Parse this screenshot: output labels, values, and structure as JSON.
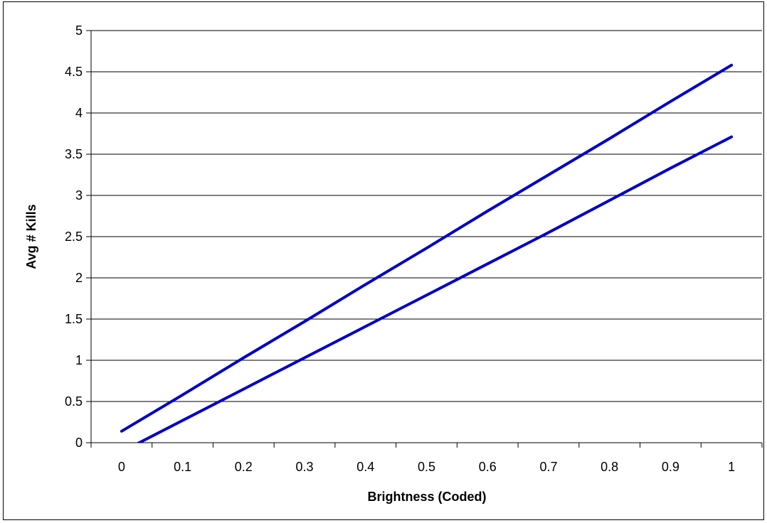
{
  "chart_data": {
    "type": "line",
    "title": "",
    "xlabel": "Brightness (Coded)",
    "ylabel": "Avg # Kills",
    "x": [
      0,
      0.1,
      0.2,
      0.3,
      0.4,
      0.5,
      0.6,
      0.7,
      0.8,
      0.9,
      1
    ],
    "x_tick_labels": [
      "0",
      "0.1",
      "0.2",
      "0.3",
      "0.4",
      "0.5",
      "0.6",
      "0.7",
      "0.8",
      "0.9",
      "1"
    ],
    "y_tick_labels": [
      "0",
      "0.5",
      "1",
      "1.5",
      "2",
      "2.5",
      "3",
      "3.5",
      "4",
      "4.5",
      "5"
    ],
    "ylim": [
      0,
      5
    ],
    "grid": "horizontal",
    "legend": "none",
    "series": [
      {
        "color": "#0000CC",
        "values": [
          0.14,
          0.58,
          1.03,
          1.47,
          1.92,
          2.36,
          2.81,
          3.25,
          3.69,
          4.14,
          4.58
        ]
      },
      {
        "color": "#0000CC",
        "values": [
          -0.11,
          0.27,
          0.65,
          1.03,
          1.41,
          1.79,
          2.17,
          2.55,
          2.94,
          3.33,
          3.71
        ]
      }
    ]
  }
}
